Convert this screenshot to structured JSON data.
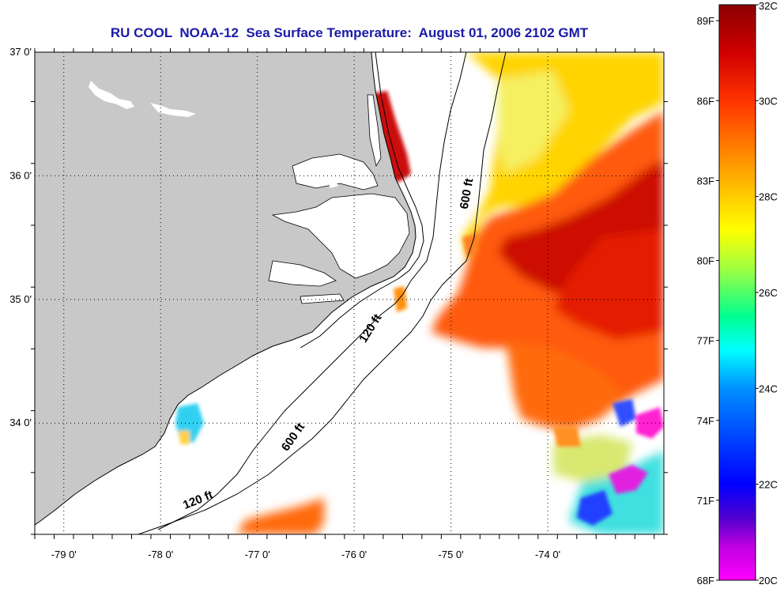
{
  "title": "RU COOL  NOAA-12  Sea Surface Temperature:  August 01, 2006 2102 GMT",
  "map": {
    "lon_range": [
      -79.3,
      -72.8
    ],
    "lat_range": [
      33.1,
      37.0
    ],
    "grid": true,
    "x_ticks": [
      {
        "value": -79,
        "label": "-79 0'"
      },
      {
        "value": -78,
        "label": "-78 0'"
      },
      {
        "value": -77,
        "label": "-77 0'"
      },
      {
        "value": -76,
        "label": "-76 0'"
      },
      {
        "value": -75,
        "label": "-75 0'"
      },
      {
        "value": -74,
        "label": "-74 0'"
      }
    ],
    "y_ticks": [
      {
        "value": 37,
        "label": "37 0'"
      },
      {
        "value": 36,
        "label": "36 0'"
      },
      {
        "value": 35,
        "label": "35 0'"
      },
      {
        "value": 34,
        "label": "34 0'"
      }
    ],
    "contour_labels": [
      {
        "text": "600 ft",
        "lon": -74.8,
        "lat": 35.85,
        "rotate": -80
      },
      {
        "text": "120 ft",
        "lon": -75.8,
        "lat": 34.75,
        "rotate": -58
      },
      {
        "text": "600 ft",
        "lon": -76.6,
        "lat": 33.87,
        "rotate": -55
      },
      {
        "text": "120 ft",
        "lon": -77.6,
        "lat": 33.35,
        "rotate": -22
      }
    ],
    "land_color": "#c8c8c8"
  },
  "colorbar": {
    "c_min": 20,
    "c_max": 32,
    "f_labels": [
      {
        "c": 31.667,
        "text": "89F"
      },
      {
        "c": 30.0,
        "text": "86F"
      },
      {
        "c": 28.333,
        "text": "83F"
      },
      {
        "c": 26.667,
        "text": "80F"
      },
      {
        "c": 25.0,
        "text": "77F"
      },
      {
        "c": 23.333,
        "text": "74F"
      },
      {
        "c": 21.667,
        "text": "71F"
      },
      {
        "c": 20.0,
        "text": "68F"
      }
    ],
    "c_labels": [
      {
        "c": 32,
        "text": "32C"
      },
      {
        "c": 30,
        "text": "30C"
      },
      {
        "c": 28,
        "text": "28C"
      },
      {
        "c": 26,
        "text": "26C"
      },
      {
        "c": 24,
        "text": "24C"
      },
      {
        "c": 22,
        "text": "22C"
      },
      {
        "c": 20,
        "text": "20C"
      }
    ],
    "stops": [
      {
        "c": 32,
        "color": "#8b0000"
      },
      {
        "c": 31,
        "color": "#d00000"
      },
      {
        "c": 30,
        "color": "#ff3300"
      },
      {
        "c": 29,
        "color": "#ff8000"
      },
      {
        "c": 28,
        "color": "#ffcc00"
      },
      {
        "c": 27.3,
        "color": "#ffff00"
      },
      {
        "c": 26.5,
        "color": "#a0ff40"
      },
      {
        "c": 25.5,
        "color": "#00ff90"
      },
      {
        "c": 24.8,
        "color": "#00ffff"
      },
      {
        "c": 24,
        "color": "#0090ff"
      },
      {
        "c": 22.7,
        "color": "#0030ff"
      },
      {
        "c": 22,
        "color": "#0000ff"
      },
      {
        "c": 21.3,
        "color": "#5000d0"
      },
      {
        "c": 20.7,
        "color": "#c000e0"
      },
      {
        "c": 20,
        "color": "#ff00ff"
      }
    ]
  }
}
